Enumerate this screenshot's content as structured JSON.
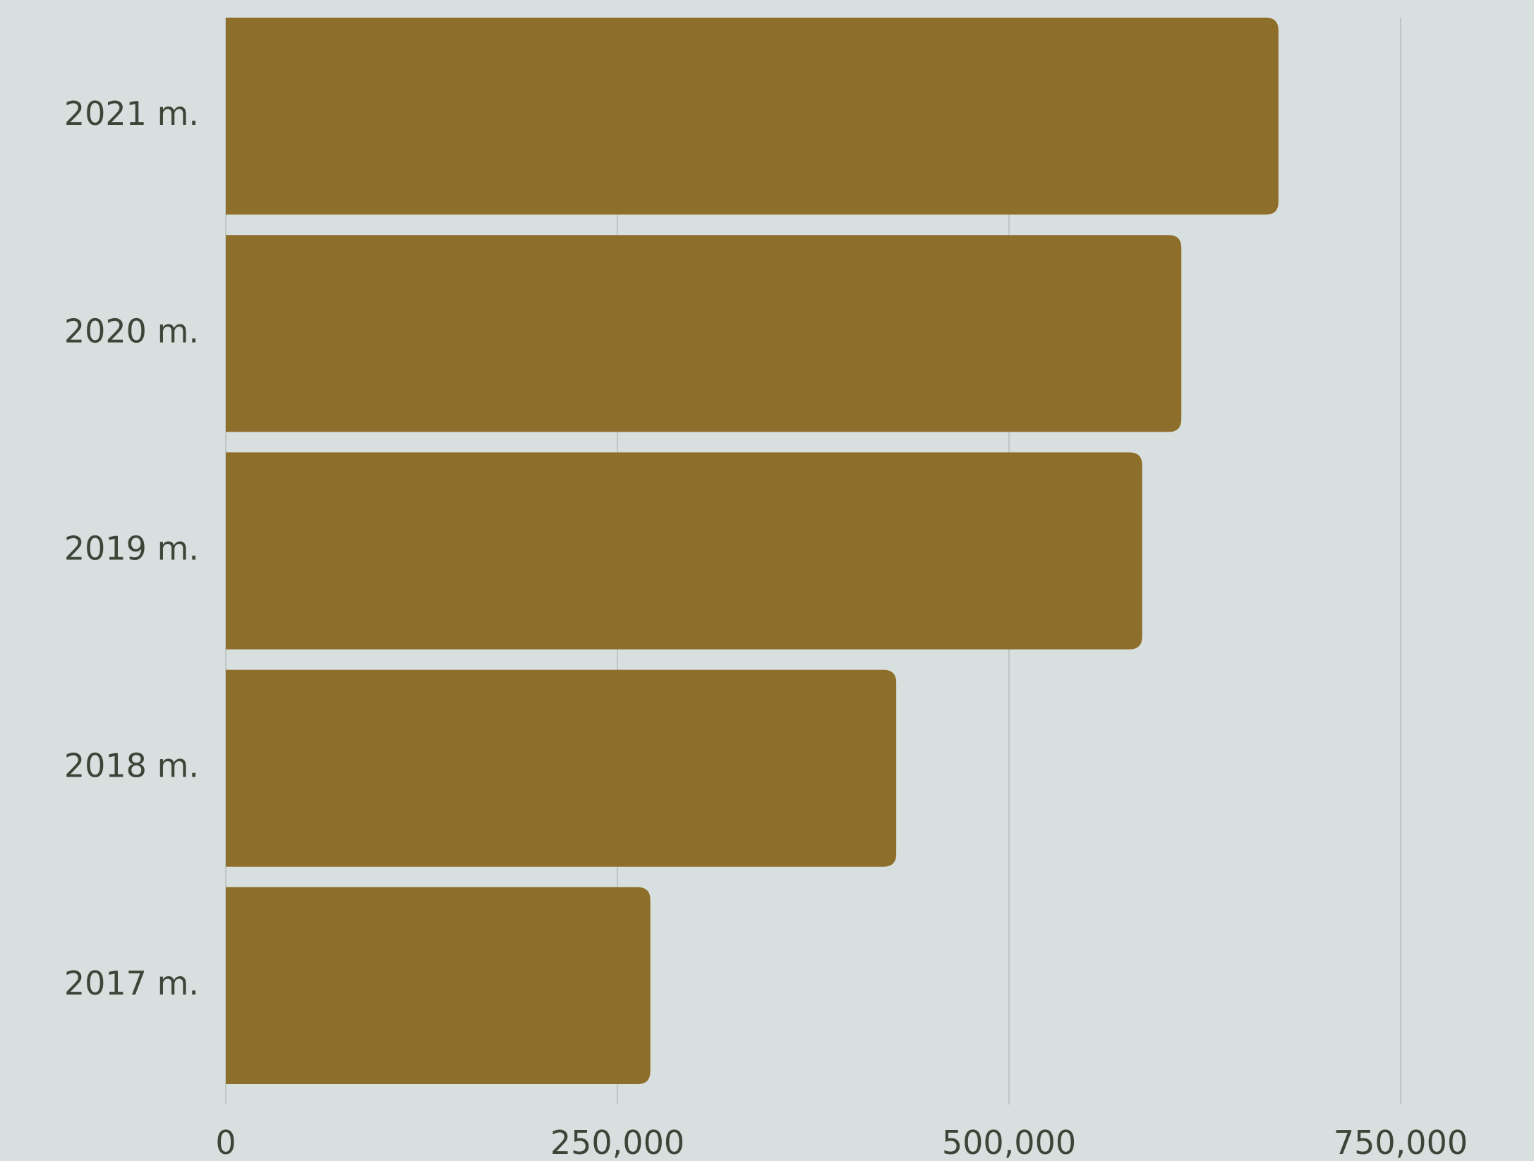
{
  "chart_data": {
    "type": "bar",
    "orientation": "horizontal",
    "categories": [
      "2021 m.",
      "2020 m.",
      "2019 m.",
      "2018 m.",
      "2017 m."
    ],
    "values": [
      672000,
      610000,
      585000,
      428000,
      271000
    ],
    "xlim": [
      0,
      800000
    ],
    "x_ticks": [
      0,
      250000,
      500000,
      750000
    ],
    "x_tick_labels": [
      "0",
      "250,000",
      "500,000",
      "750,000"
    ],
    "grid": true,
    "title": "",
    "xlabel": "",
    "ylabel": ""
  },
  "colors": {
    "background": "#d8e0df",
    "bar": "#8e6e2b",
    "grid": "#bfc7c6",
    "text": "#3d4438"
  }
}
